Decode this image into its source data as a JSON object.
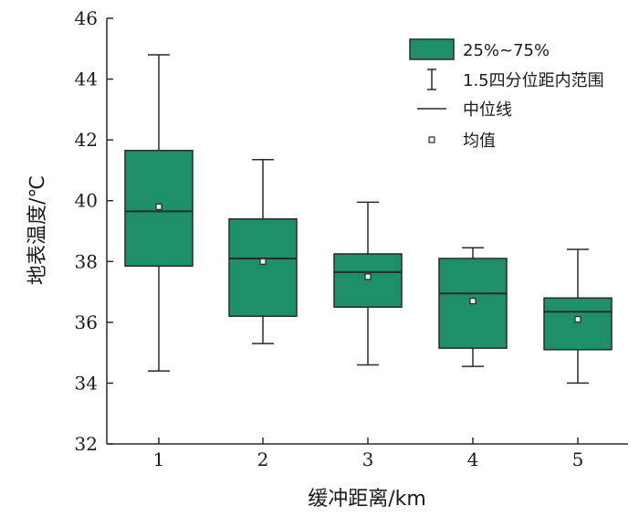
{
  "chart_data": {
    "type": "box",
    "xlabel": "缓冲距离/km",
    "ylabel": "地表温度/℃",
    "ylim": [
      32,
      46
    ],
    "yticks": [
      32,
      34,
      36,
      38,
      40,
      42,
      44,
      46
    ],
    "categories": [
      "1",
      "2",
      "3",
      "4",
      "5"
    ],
    "boxes": [
      {
        "category": "1",
        "whisker_low": 34.4,
        "q1": 37.85,
        "median": 39.65,
        "q3": 41.65,
        "whisker_high": 44.8,
        "mean": 39.8
      },
      {
        "category": "2",
        "whisker_low": 35.3,
        "q1": 36.2,
        "median": 38.1,
        "q3": 39.4,
        "whisker_high": 41.35,
        "mean": 38.0
      },
      {
        "category": "3",
        "whisker_low": 34.6,
        "q1": 36.5,
        "median": 37.65,
        "q3": 38.25,
        "whisker_high": 39.95,
        "mean": 37.5
      },
      {
        "category": "4",
        "whisker_low": 34.55,
        "q1": 35.15,
        "median": 36.95,
        "q3": 38.1,
        "whisker_high": 38.45,
        "mean": 36.7
      },
      {
        "category": "5",
        "whisker_low": 34.0,
        "q1": 35.1,
        "median": 36.35,
        "q3": 36.8,
        "whisker_high": 38.4,
        "mean": 36.1
      }
    ],
    "legend": {
      "position": "top-right",
      "entries": [
        {
          "key": "box",
          "label": "25%~75%"
        },
        {
          "key": "whisker",
          "label": "1.5四分位距内范围"
        },
        {
          "key": "median",
          "label": "中位线"
        },
        {
          "key": "mean",
          "label": "均值"
        }
      ]
    },
    "colors": {
      "box_fill": "#1f8f6a",
      "line": "#2a2a2a",
      "mean_fill": "#f0f0f0"
    }
  }
}
